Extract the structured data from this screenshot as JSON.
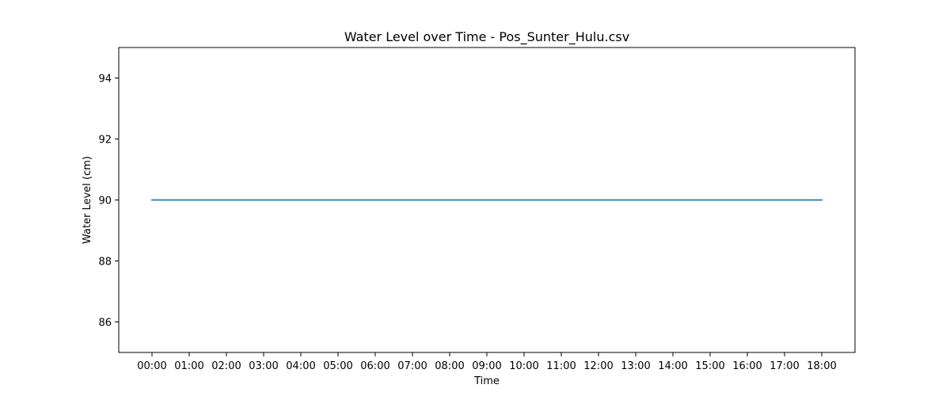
{
  "chart_data": {
    "type": "line",
    "title": "Water Level over Time - Pos_Sunter_Hulu.csv",
    "xlabel": "Time",
    "ylabel": "Water Level (cm)",
    "x": [
      "00:00",
      "01:00",
      "02:00",
      "03:00",
      "04:00",
      "05:00",
      "06:00",
      "07:00",
      "08:00",
      "09:00",
      "10:00",
      "11:00",
      "12:00",
      "13:00",
      "14:00",
      "15:00",
      "16:00",
      "17:00",
      "18:00"
    ],
    "series": [
      {
        "values": [
          90,
          90,
          90,
          90,
          90,
          90,
          90,
          90,
          90,
          90,
          90,
          90,
          90,
          90,
          90,
          90,
          90,
          90,
          90
        ],
        "color": "#1f77b4"
      }
    ],
    "ylim": [
      85,
      95
    ],
    "yticks": [
      86,
      88,
      90,
      92,
      94
    ],
    "grid": false,
    "legend": "none"
  }
}
